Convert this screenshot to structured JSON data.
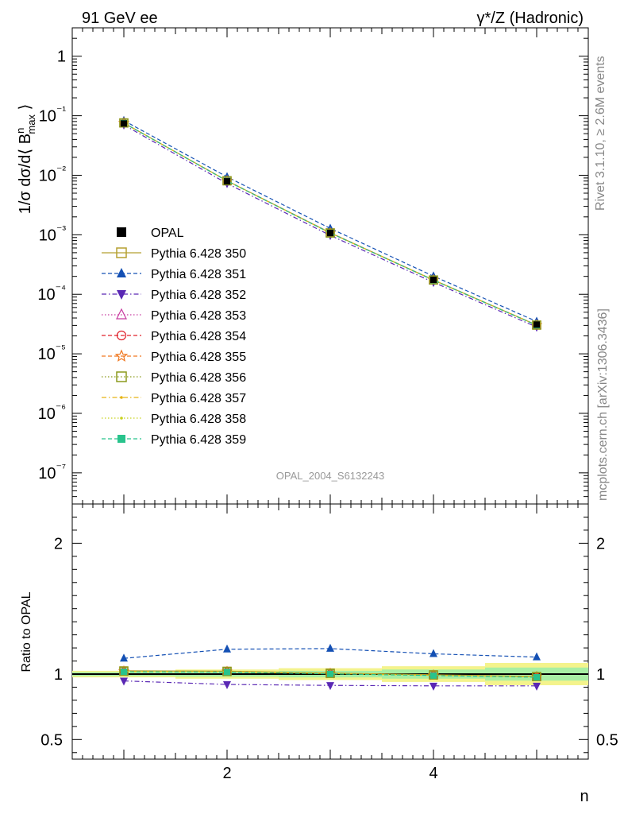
{
  "header": {
    "left": "91 GeV ee",
    "right": "γ*/Z (Hadronic)"
  },
  "side_labels": {
    "rivet": "Rivet 3.1.10, ≥ 2.6M events",
    "mcplots": "mcplots.cern.ch [arXiv:1306.3436]"
  },
  "watermark": "OPAL_2004_S6132243",
  "chart_data": [
    {
      "type": "line",
      "title": "91 GeV ee",
      "ylabel": "1/σ dσ/d⟨ B^n_max ⟩",
      "xlabel": "n",
      "yscale": "log",
      "xlim": [
        0.5,
        5.5
      ],
      "ylim": [
        3e-08,
        3
      ],
      "y_tick_labels": [
        "1",
        "10⁻¹",
        "10⁻²",
        "10⁻³",
        "10⁻⁴",
        "10⁻⁵",
        "10⁻⁶",
        "10⁻⁷"
      ],
      "x": [
        1,
        2,
        3,
        4,
        5
      ],
      "reference": {
        "name": "OPAL",
        "values": [
          0.0741,
          0.00791,
          0.00107,
          0.000175,
          3.1e-05
        ]
      },
      "series": [
        {
          "name": "Pythia 6.428 350",
          "color": "#b5a030",
          "dash": "solid",
          "marker": "open-square",
          "values": [
            0.0759,
            0.00809,
            0.00108,
            0.000174,
            3.04e-05
          ]
        },
        {
          "name": "Pythia 6.428 351",
          "color": "#1450b4",
          "dash": "dashed",
          "marker": "filled-triangle-up",
          "values": [
            0.0829,
            0.00941,
            0.00128,
            0.000202,
            3.5e-05
          ]
        },
        {
          "name": "Pythia 6.428 352",
          "color": "#5a28b4",
          "dash": "dashdot",
          "marker": "filled-triangle-down",
          "values": [
            0.0703,
            0.00728,
            0.000978,
            0.000159,
            2.82e-05
          ]
        },
        {
          "name": "Pythia 6.428 353",
          "color": "#c83ca0",
          "dash": "dotted",
          "marker": "open-triangle-up",
          "values": [
            0.0755,
            0.00805,
            0.00107,
            0.000173,
            3.03e-05
          ]
        },
        {
          "name": "Pythia 6.428 354",
          "color": "#e0202a",
          "dash": "dashed",
          "marker": "open-circle",
          "values": [
            0.0756,
            0.00806,
            0.00108,
            0.000173,
            3.03e-05
          ]
        },
        {
          "name": "Pythia 6.428 355",
          "color": "#f07820",
          "dash": "dashed",
          "marker": "open-star",
          "values": [
            0.0757,
            0.00806,
            0.00107,
            0.000174,
            3.04e-05
          ]
        },
        {
          "name": "Pythia 6.428 356",
          "color": "#8c9a1e",
          "dash": "dotted",
          "marker": "open-square",
          "values": [
            0.0757,
            0.00807,
            0.00107,
            0.000174,
            3.04e-05
          ]
        },
        {
          "name": "Pythia 6.428 357",
          "color": "#e6b414",
          "dash": "dashdot",
          "marker": "small-dot",
          "values": [
            0.0756,
            0.00806,
            0.00107,
            0.000173,
            3.03e-05
          ]
        },
        {
          "name": "Pythia 6.428 358",
          "color": "#c8d21e",
          "dash": "dotted",
          "marker": "small-dot",
          "values": [
            0.0756,
            0.00806,
            0.00107,
            0.000173,
            3.03e-05
          ]
        },
        {
          "name": "Pythia 6.428 359",
          "color": "#28c38c",
          "dash": "dashed",
          "marker": "filled-square",
          "values": [
            0.0754,
            0.00803,
            0.00107,
            0.000173,
            3.02e-05
          ]
        }
      ]
    },
    {
      "type": "line",
      "ylabel": "Ratio to OPAL",
      "xlabel": "n",
      "xlim": [
        0.5,
        5.5
      ],
      "ylim": [
        0.35,
        2.3
      ],
      "y_tick_labels": [
        "0.5",
        "1",
        "2"
      ],
      "x_tick_labels": [
        "2",
        "4"
      ],
      "x": [
        1,
        2,
        3,
        4,
        5
      ],
      "uncertainty_band": {
        "inner": [
          0.015,
          0.02,
          0.025,
          0.035,
          0.05
        ],
        "outer": [
          0.025,
          0.035,
          0.045,
          0.06,
          0.085
        ]
      },
      "series": [
        {
          "name": "Pythia 6.428 350",
          "values": [
            1.025,
            1.022,
            1.008,
            0.995,
            0.982
          ]
        },
        {
          "name": "Pythia 6.428 351",
          "values": [
            1.12,
            1.19,
            1.195,
            1.155,
            1.13
          ]
        },
        {
          "name": "Pythia 6.428 352",
          "values": [
            0.948,
            0.921,
            0.914,
            0.91,
            0.91
          ]
        },
        {
          "name": "Pythia 6.428 353",
          "values": [
            1.019,
            1.018,
            1.003,
            0.99,
            0.978
          ]
        },
        {
          "name": "Pythia 6.428 354",
          "values": [
            1.02,
            1.019,
            1.004,
            0.991,
            0.979
          ]
        },
        {
          "name": "Pythia 6.428 355",
          "values": [
            1.021,
            1.019,
            1.004,
            0.992,
            0.98
          ]
        },
        {
          "name": "Pythia 6.428 356",
          "values": [
            1.022,
            1.02,
            1.005,
            0.993,
            0.981
          ]
        },
        {
          "name": "Pythia 6.428 357",
          "values": [
            1.02,
            1.019,
            1.004,
            0.991,
            0.979
          ]
        },
        {
          "name": "Pythia 6.428 358",
          "values": [
            1.02,
            1.019,
            1.004,
            0.991,
            0.979
          ]
        },
        {
          "name": "Pythia 6.428 359",
          "values": [
            1.018,
            1.016,
            1.002,
            0.989,
            0.976
          ]
        }
      ]
    }
  ]
}
